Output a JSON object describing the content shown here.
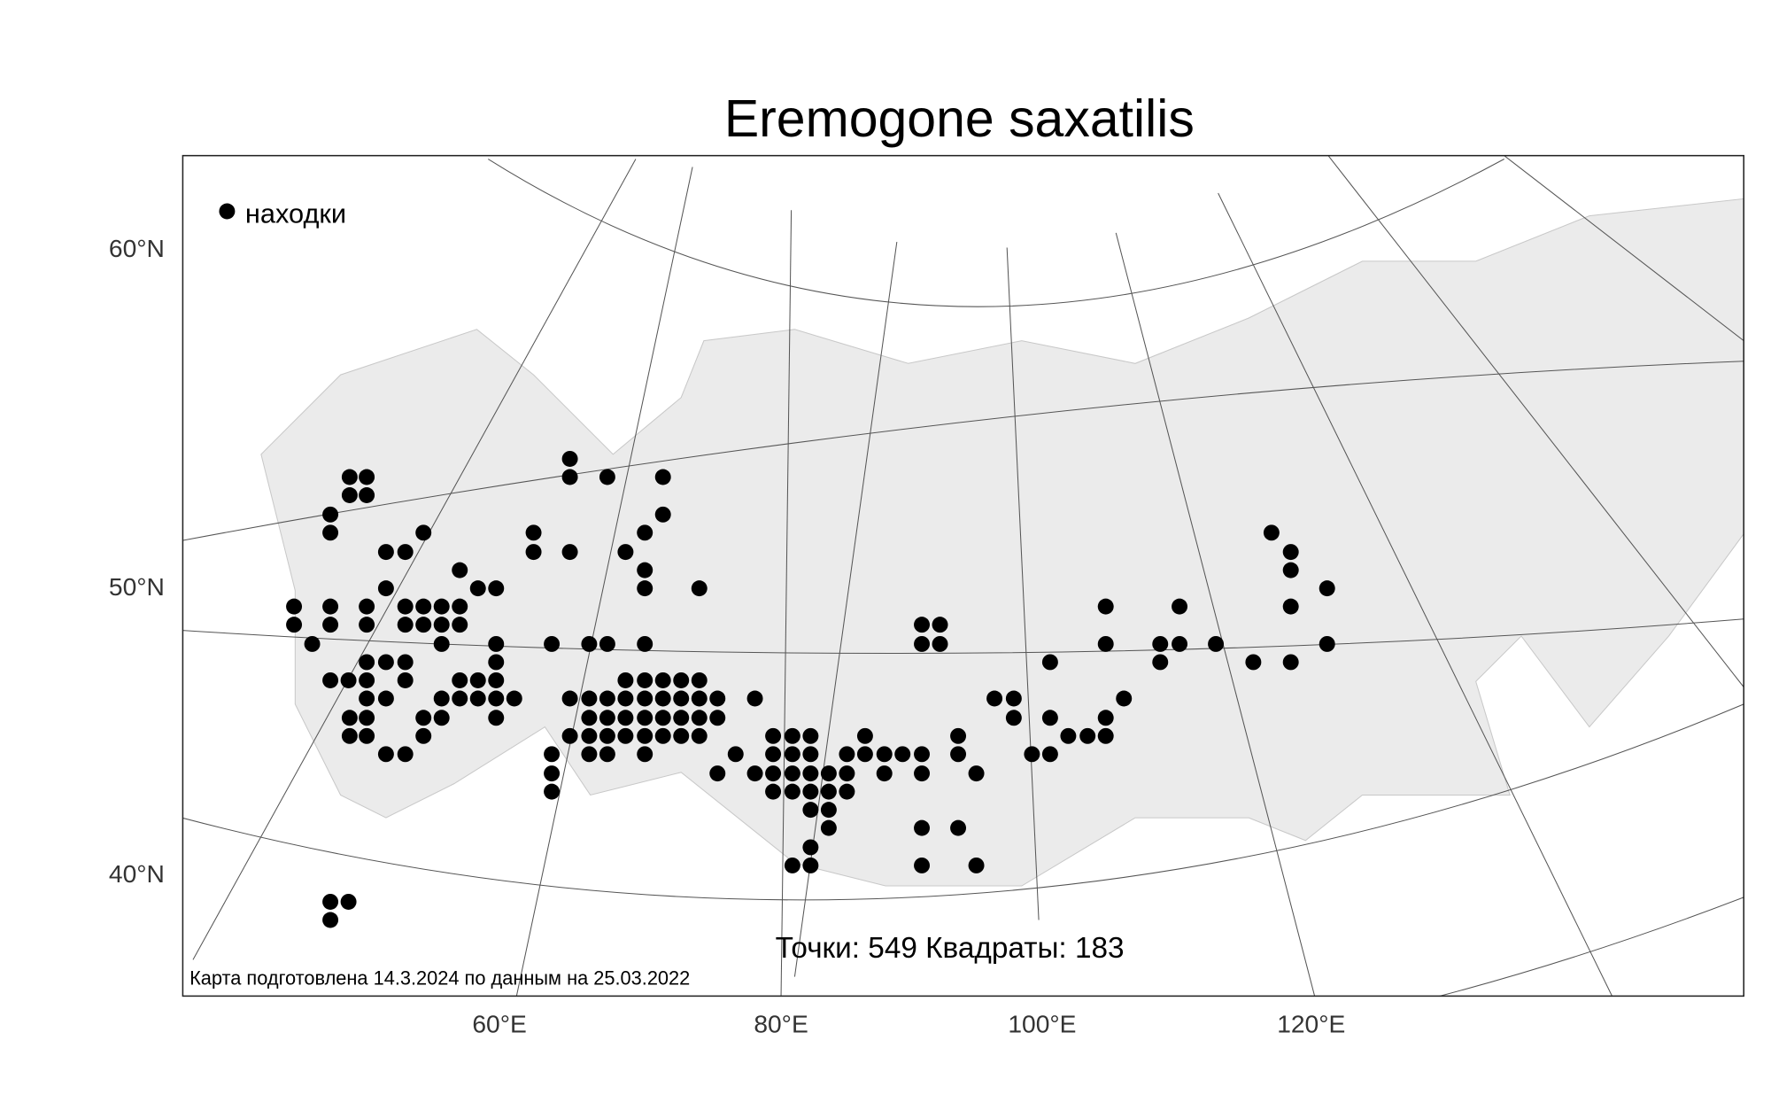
{
  "title": "Eremogone saxatilis",
  "legend": {
    "label": "находки"
  },
  "axes": {
    "y_labels": [
      "60°N",
      "50°N",
      "40°N"
    ],
    "x_labels": [
      "60°E",
      "80°E",
      "100°E",
      "120°E"
    ]
  },
  "stats": "Точки: 549 Квадраты: 183",
  "footer": "Карта подготовлена 14.3.2024 по данным на 25.03.2022"
}
